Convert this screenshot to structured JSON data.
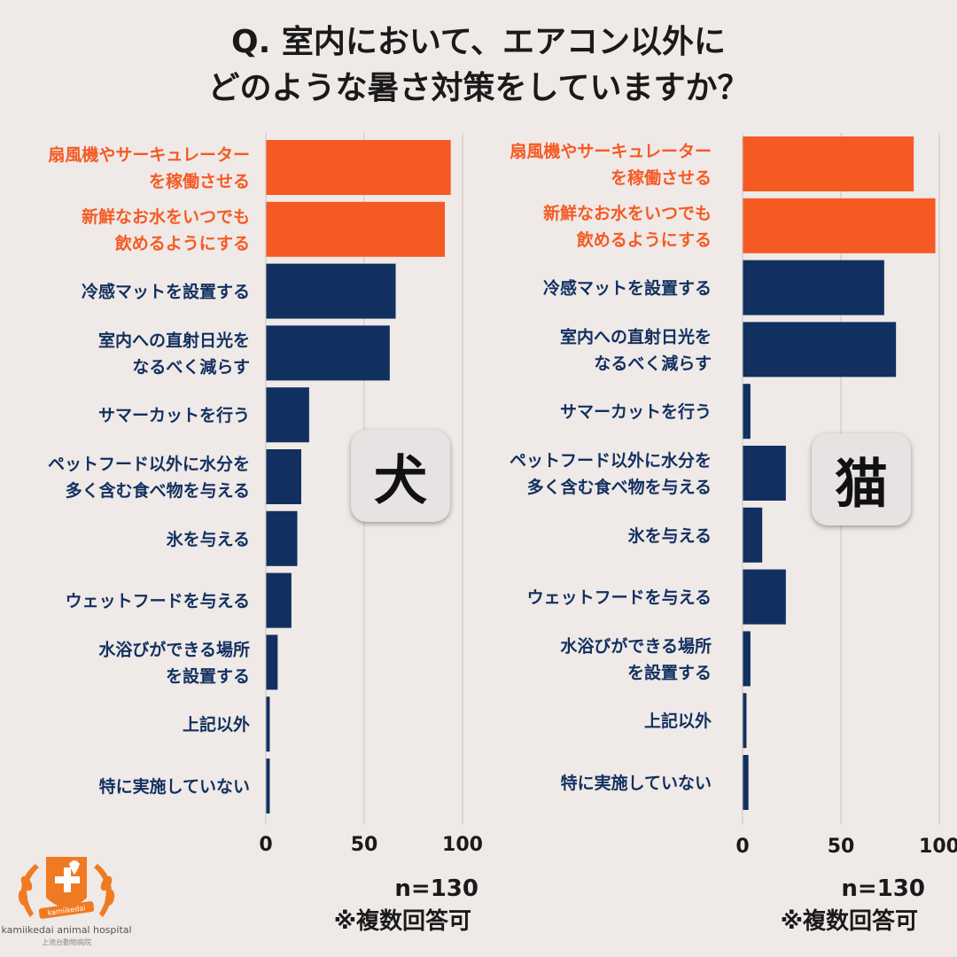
{
  "title": {
    "line1": "Q. 室内において、エアコン以外に",
    "line2": "どのような暑さ対策をしていますか？"
  },
  "colors": {
    "highlight": "#f55a23",
    "normal": "#11305f",
    "background": "#efe9e7",
    "grid": "#c9c3c1"
  },
  "chart_data": [
    {
      "type": "bar",
      "orientation": "horizontal",
      "panel_label": "犬",
      "xlim": [
        0,
        100
      ],
      "xticks": [
        "0",
        "50",
        "100"
      ],
      "n_label": "n=130",
      "multi_label": "※複数回答可",
      "categories": [
        [
          "扇風機やサーキュレーター",
          "を稼働させる"
        ],
        [
          "新鮮なお水をいつでも",
          "飲めるようにする"
        ],
        [
          "冷感マットを設置する"
        ],
        [
          "室内への直射日光を",
          "なるべく減らす"
        ],
        [
          "サマーカットを行う"
        ],
        [
          "ペットフード以外に水分を",
          "多く含む食べ物を与える"
        ],
        [
          "氷を与える"
        ],
        [
          "ウェットフードを与える"
        ],
        [
          "水浴びができる場所",
          "を設置する"
        ],
        [
          "上記以外"
        ],
        [
          "特に実施していない"
        ]
      ],
      "values": [
        94,
        91,
        66,
        63,
        22,
        18,
        16,
        13,
        6,
        2,
        2
      ],
      "highlight": [
        true,
        true,
        false,
        false,
        false,
        false,
        false,
        false,
        false,
        false,
        false
      ]
    },
    {
      "type": "bar",
      "orientation": "horizontal",
      "panel_label": "猫",
      "xlim": [
        0,
        100
      ],
      "xticks": [
        "0",
        "50",
        "100"
      ],
      "n_label": "n=130",
      "multi_label": "※複数回答可",
      "categories": [
        [
          "扇風機やサーキュレーター",
          "を稼働させる"
        ],
        [
          "新鮮なお水をいつでも",
          "飲めるようにする"
        ],
        [
          "冷感マットを設置する"
        ],
        [
          "室内への直射日光を",
          "なるべく減らす"
        ],
        [
          "サマーカットを行う"
        ],
        [
          "ペットフード以外に水分を",
          "多く含む食べ物を与える"
        ],
        [
          "氷を与える"
        ],
        [
          "ウェットフードを与える"
        ],
        [
          "水浴びができる場所",
          "を設置する"
        ],
        [
          "上記以外"
        ],
        [
          "特に実施していない"
        ]
      ],
      "values": [
        87,
        98,
        72,
        78,
        4,
        22,
        10,
        22,
        4,
        2,
        3
      ],
      "highlight": [
        true,
        true,
        false,
        false,
        false,
        false,
        false,
        false,
        false,
        false,
        false
      ]
    }
  ],
  "logo": {
    "name": "kamiikedai animal hospital",
    "ribbon": "kamiikedai",
    "sub": "上池台動物病院"
  }
}
